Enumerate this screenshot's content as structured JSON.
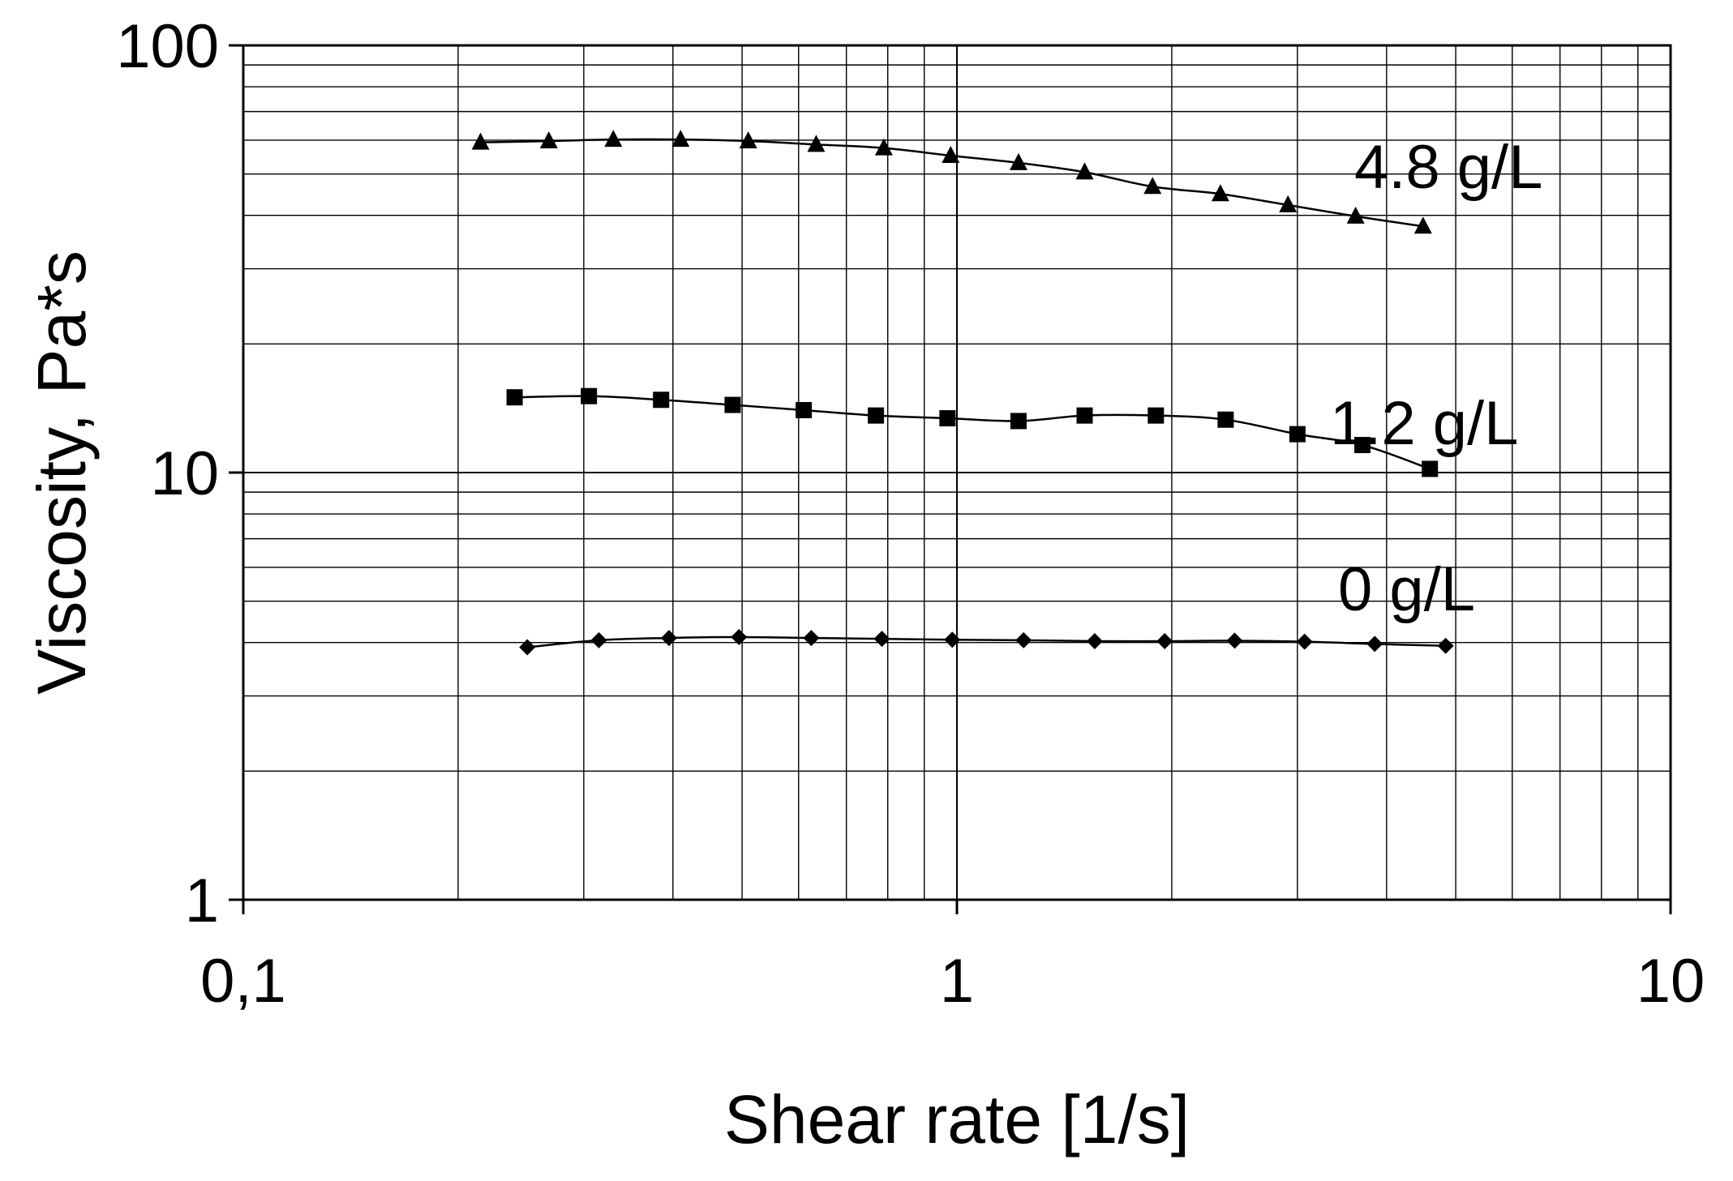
{
  "chart_data": {
    "type": "line",
    "xlabel": "Shear rate [1/s]",
    "ylabel": "Viscosity, Pa*s",
    "x_scale": "log",
    "y_scale": "log",
    "xlim": [
      0.1,
      10
    ],
    "ylim": [
      1,
      100
    ],
    "x_tick_labels": [
      {
        "value": 0.1,
        "label": "0,1"
      },
      {
        "value": 1,
        "label": "1"
      },
      {
        "value": 10,
        "label": "10"
      }
    ],
    "y_tick_labels": [
      {
        "value": 1,
        "label": "1"
      },
      {
        "value": 10,
        "label": "10"
      },
      {
        "value": 100,
        "label": "100"
      }
    ],
    "grid": true,
    "series_color": "#000000",
    "series": [
      {
        "name": "4.8 g/L",
        "marker": "triangle",
        "points": [
          [
            0.215,
            59.3
          ],
          [
            0.268,
            59.7
          ],
          [
            0.33,
            60.2
          ],
          [
            0.41,
            60.2
          ],
          [
            0.51,
            59.7
          ],
          [
            0.635,
            58.6
          ],
          [
            0.79,
            57.5
          ],
          [
            0.98,
            55.2
          ],
          [
            1.22,
            53.1
          ],
          [
            1.51,
            50.5
          ],
          [
            1.88,
            46.7
          ],
          [
            2.34,
            44.9
          ],
          [
            2.91,
            42.3
          ],
          [
            3.62,
            39.8
          ],
          [
            4.5,
            37.7
          ]
        ]
      },
      {
        "name": "1.2 g/L",
        "marker": "square",
        "points": [
          [
            0.24,
            15.0
          ],
          [
            0.305,
            15.1
          ],
          [
            0.385,
            14.8
          ],
          [
            0.485,
            14.4
          ],
          [
            0.61,
            14.0
          ],
          [
            0.77,
            13.6
          ],
          [
            0.97,
            13.4
          ],
          [
            1.22,
            13.2
          ],
          [
            1.51,
            13.6
          ],
          [
            1.9,
            13.6
          ],
          [
            2.38,
            13.3
          ],
          [
            3.0,
            12.3
          ],
          [
            3.7,
            11.6
          ],
          [
            4.6,
            10.2
          ]
        ]
      },
      {
        "name": "0 g/L",
        "marker": "diamond",
        "points": [
          [
            0.25,
            3.9
          ],
          [
            0.315,
            4.05
          ],
          [
            0.395,
            4.1
          ],
          [
            0.495,
            4.12
          ],
          [
            0.625,
            4.1
          ],
          [
            0.785,
            4.08
          ],
          [
            0.985,
            4.06
          ],
          [
            1.24,
            4.05
          ],
          [
            1.56,
            4.03
          ],
          [
            1.955,
            4.03
          ],
          [
            2.45,
            4.04
          ],
          [
            3.07,
            4.02
          ],
          [
            3.85,
            3.97
          ],
          [
            4.84,
            3.93
          ]
        ]
      }
    ]
  }
}
